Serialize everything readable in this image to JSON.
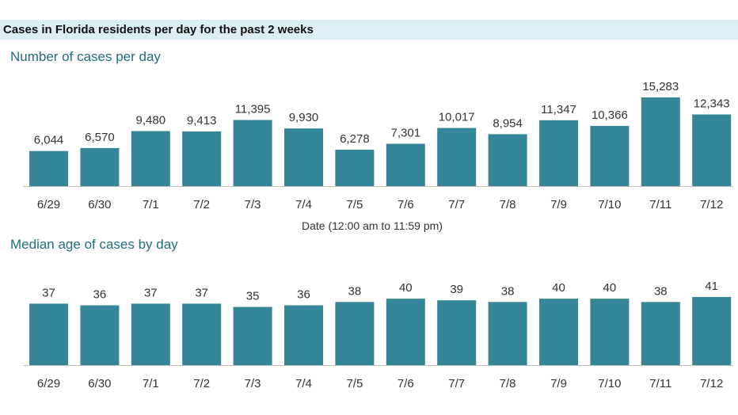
{
  "header": {
    "title": "Cases in Florida residents per day for the past 2 weeks"
  },
  "colors": {
    "bar": "#36869a",
    "banner": "#dbeef3",
    "title": "#1f6f7c",
    "axis": "#bfbfbf"
  },
  "chart_data": [
    {
      "type": "bar",
      "title": "Number of cases per day",
      "xlabel": "Date (12:00 am to 11:59 pm)",
      "ylabel": "",
      "categories": [
        "6/29",
        "6/30",
        "7/1",
        "7/2",
        "7/3",
        "7/4",
        "7/5",
        "7/6",
        "7/7",
        "7/8",
        "7/9",
        "7/10",
        "7/11",
        "7/12"
      ],
      "values": [
        6044,
        6570,
        9480,
        9413,
        11395,
        9930,
        6278,
        7301,
        10017,
        8954,
        11347,
        10366,
        15283,
        12343
      ],
      "value_labels": [
        "6,044",
        "6,570",
        "9,480",
        "9,413",
        "11,395",
        "9,930",
        "6,278",
        "7,301",
        "10,017",
        "8,954",
        "11,347",
        "10,366",
        "15,283",
        "12,343"
      ],
      "ylim": [
        0,
        15283
      ],
      "grid": false,
      "legend": "none"
    },
    {
      "type": "bar",
      "title": "Median age of cases by day",
      "xlabel": "",
      "ylabel": "",
      "categories": [
        "6/29",
        "6/30",
        "7/1",
        "7/2",
        "7/3",
        "7/4",
        "7/5",
        "7/6",
        "7/7",
        "7/8",
        "7/9",
        "7/10",
        "7/11",
        "7/12"
      ],
      "values": [
        37,
        36,
        37,
        37,
        35,
        36,
        38,
        40,
        39,
        38,
        40,
        40,
        38,
        41
      ],
      "value_labels": [
        "37",
        "36",
        "37",
        "37",
        "35",
        "36",
        "38",
        "40",
        "39",
        "38",
        "40",
        "40",
        "38",
        "41"
      ],
      "ylim": [
        0,
        41
      ],
      "grid": false,
      "legend": "none"
    }
  ]
}
